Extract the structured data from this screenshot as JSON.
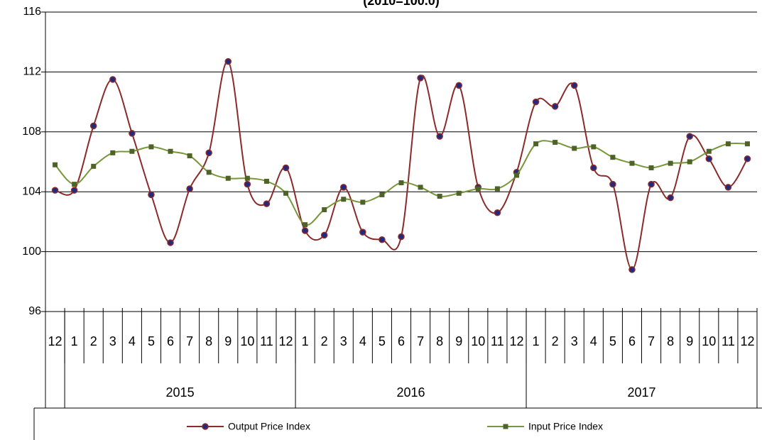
{
  "chart_data": {
    "type": "line",
    "title": "(2010=100.0)",
    "categories": [
      "12",
      "1",
      "2",
      "3",
      "4",
      "5",
      "6",
      "7",
      "8",
      "9",
      "10",
      "11",
      "12",
      "1",
      "2",
      "3",
      "4",
      "5",
      "6",
      "7",
      "8",
      "9",
      "10",
      "11",
      "12",
      "1",
      "2",
      "3",
      "4",
      "5",
      "6",
      "7",
      "8",
      "9",
      "10",
      "11",
      "12"
    ],
    "groups": [
      {
        "name": "2015",
        "start": 1,
        "end": 12
      },
      {
        "name": "2016",
        "start": 13,
        "end": 24
      },
      {
        "name": "2017",
        "start": 25,
        "end": 36
      }
    ],
    "series": [
      {
        "name": "Output Price Index",
        "color": "#8b2a2a",
        "marker": "circle",
        "marker_color": "#1f2a80",
        "values": [
          104.1,
          104.1,
          108.4,
          111.5,
          107.9,
          103.8,
          100.6,
          104.2,
          106.6,
          112.7,
          104.5,
          103.2,
          105.6,
          101.4,
          101.1,
          104.3,
          101.3,
          100.8,
          101.0,
          111.6,
          107.7,
          111.1,
          104.3,
          102.6,
          105.3,
          110.0,
          109.7,
          111.1,
          105.6,
          104.5,
          98.8,
          104.5,
          103.6,
          107.7,
          106.2,
          104.3,
          106.2
        ]
      },
      {
        "name": "Input Price Index",
        "color": "#77973a",
        "marker": "square",
        "marker_color": "#4f6228",
        "values": [
          105.8,
          104.5,
          105.7,
          106.6,
          106.7,
          107.0,
          106.7,
          106.4,
          105.3,
          104.9,
          104.9,
          104.7,
          103.9,
          101.8,
          102.8,
          103.5,
          103.3,
          103.8,
          104.6,
          104.3,
          103.7,
          103.9,
          104.2,
          104.2,
          105.1,
          107.2,
          107.3,
          106.9,
          107.0,
          106.3,
          105.9,
          105.6,
          105.9,
          106.0,
          106.7,
          107.2,
          107.2
        ]
      }
    ],
    "ylim": [
      96,
      116
    ],
    "yticks": [
      96,
      100,
      104,
      108,
      112,
      116
    ],
    "grid": true,
    "smooth": true,
    "legend": "bottom"
  }
}
